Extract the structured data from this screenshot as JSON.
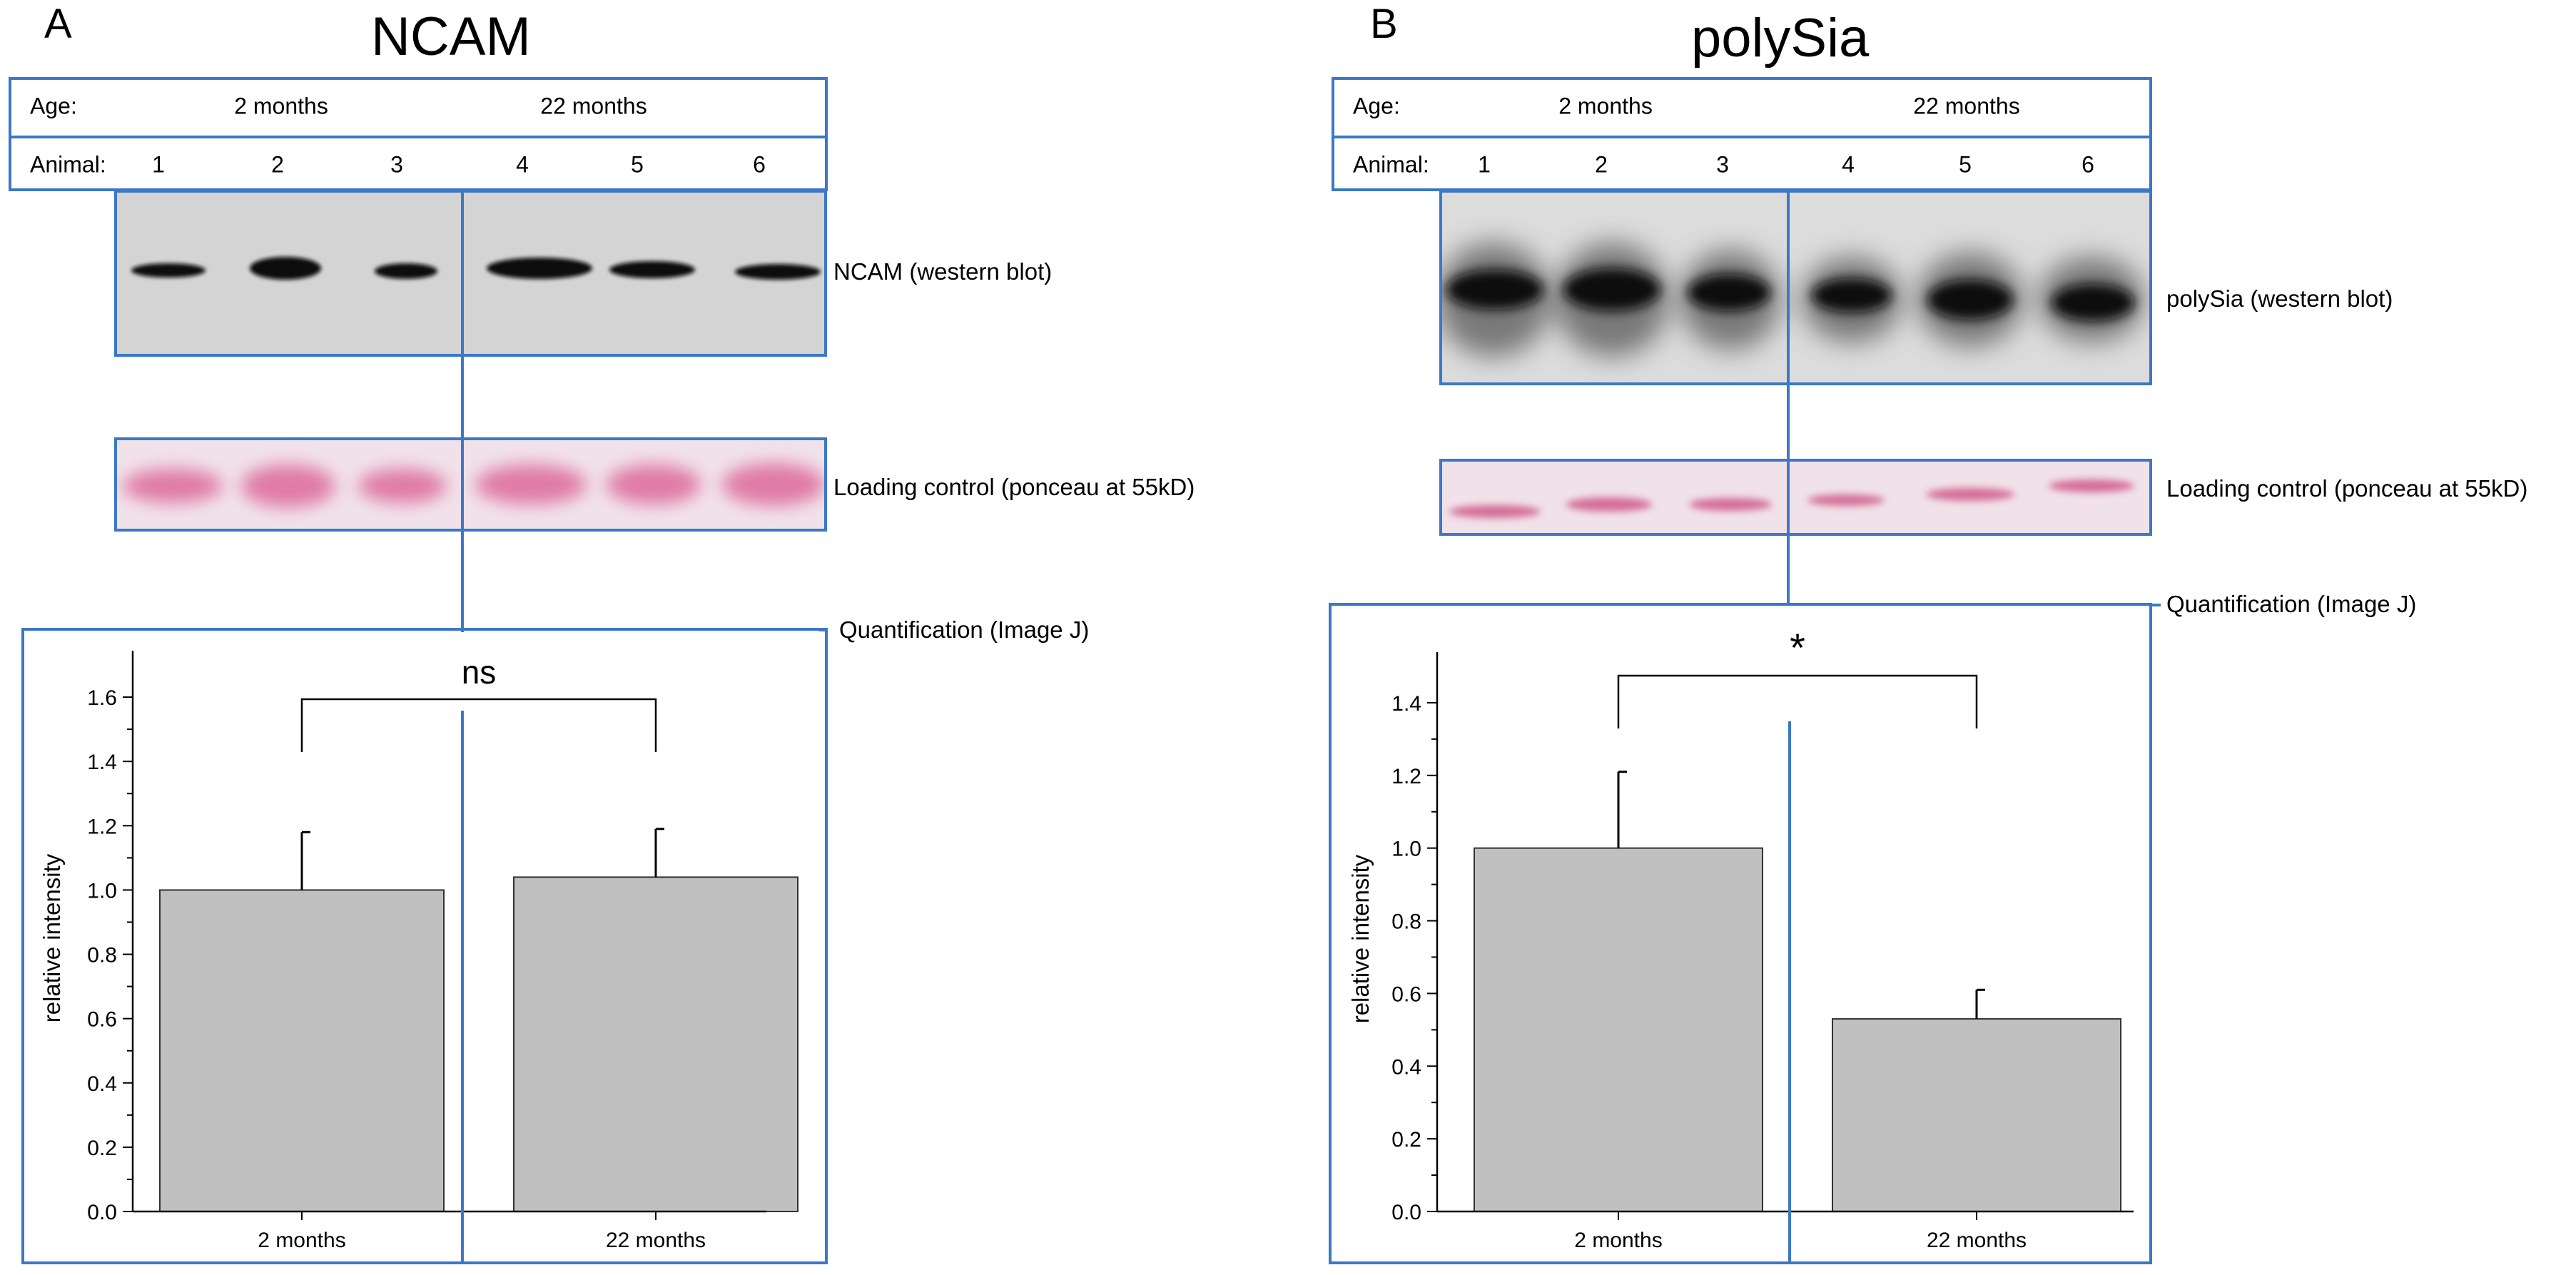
{
  "panels": [
    {
      "letter": "A",
      "title": "NCAM",
      "table": {
        "age_label": "Age:",
        "age_groups": [
          "2 months",
          "22 months"
        ],
        "animal_label": "Animal:",
        "animals": [
          "1",
          "2",
          "3",
          "4",
          "5",
          "6"
        ]
      },
      "blot_label": "NCAM (western blot)",
      "loading_label": "Loading control (ponceau at 55kD)",
      "quant_label": "Quantification (Image J)",
      "significance": "ns"
    },
    {
      "letter": "B",
      "title": "polySia",
      "table": {
        "age_label": "Age:",
        "age_groups": [
          "2 months",
          "22 months"
        ],
        "animal_label": "Animal:",
        "animals": [
          "1",
          "2",
          "3",
          "4",
          "5",
          "6"
        ]
      },
      "blot_label": "polySia (western blot)",
      "loading_label": "Loading control (ponceau at 55kD)",
      "quant_label": "Quantification (Image J)",
      "significance": "*"
    }
  ],
  "chart_data": [
    {
      "type": "bar",
      "title": "NCAM",
      "categories": [
        "2 months",
        "22 months"
      ],
      "values": [
        1.0,
        1.04
      ],
      "errors": [
        0.18,
        0.15
      ],
      "ylabel": "relative intensity",
      "xlabel": "",
      "ylim": [
        0,
        1.7
      ],
      "yticks": [
        0.0,
        0.2,
        0.4,
        0.6,
        0.8,
        1.0,
        1.2,
        1.4,
        1.6
      ],
      "ytick_labels": [
        "0.0",
        "0.2",
        "0.4",
        "0.6",
        "0.8",
        "1.0",
        "1.2",
        "1.4",
        "1.6"
      ],
      "significance": "ns",
      "bar_color": "#c0c0c0"
    },
    {
      "type": "bar",
      "title": "polySia",
      "categories": [
        "2 months",
        "22 months"
      ],
      "values": [
        1.0,
        0.53
      ],
      "errors": [
        0.21,
        0.08
      ],
      "ylabel": "relative intensity",
      "xlabel": "",
      "ylim": [
        0,
        1.5
      ],
      "yticks": [
        0.0,
        0.2,
        0.4,
        0.6,
        0.8,
        1.0,
        1.2,
        1.4
      ],
      "ytick_labels": [
        "0.0",
        "0.2",
        "0.4",
        "0.6",
        "0.8",
        "1.0",
        "1.2",
        "1.4"
      ],
      "significance": "*",
      "bar_color": "#c0c0c0"
    }
  ],
  "colors": {
    "frame": "#3b78c7",
    "blot_bg": "#d4d4d4",
    "ponceau": "#e07aa6"
  }
}
